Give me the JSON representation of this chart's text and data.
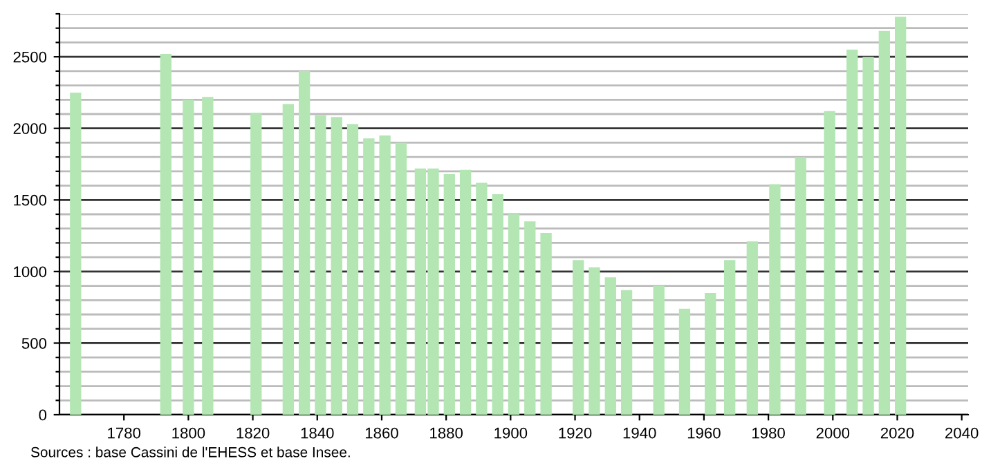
{
  "chart_data": {
    "type": "bar",
    "x": [
      1765,
      1793,
      1800,
      1806,
      1821,
      1831,
      1836,
      1841,
      1846,
      1851,
      1856,
      1861,
      1866,
      1872,
      1876,
      1881,
      1886,
      1891,
      1896,
      1901,
      1906,
      1911,
      1921,
      1926,
      1931,
      1936,
      1946,
      1954,
      1962,
      1968,
      1975,
      1982,
      1990,
      1999,
      2006,
      2011,
      2016,
      2021
    ],
    "values": [
      2250,
      2520,
      2200,
      2220,
      2110,
      2170,
      2400,
      2090,
      2080,
      2030,
      1930,
      1950,
      1900,
      1720,
      1720,
      1680,
      1710,
      1620,
      1540,
      1400,
      1350,
      1270,
      1080,
      1030,
      960,
      870,
      900,
      740,
      850,
      1080,
      1210,
      1610,
      1800,
      2120,
      2550,
      2500,
      2680,
      2780
    ],
    "color": "#b3e6b3",
    "xlim": [
      1760,
      2042
    ],
    "xticks": [
      1780,
      1800,
      1820,
      1840,
      1860,
      1880,
      1900,
      1920,
      1940,
      1960,
      1980,
      2000,
      2020,
      2040
    ],
    "ylim": [
      0,
      2800
    ],
    "yticks": [
      0,
      {
        "value": 100,
        "label": null
      },
      {
        "value": 200,
        "label": null
      },
      {
        "value": 300,
        "label": null
      },
      {
        "value": 400,
        "label": null
      },
      500,
      {
        "value": 600,
        "label": null
      },
      {
        "value": 700,
        "label": null
      },
      {
        "value": 800,
        "label": null
      },
      {
        "value": 900,
        "label": null
      },
      1000,
      {
        "value": 1100,
        "label": null
      },
      {
        "value": 1200,
        "label": null
      },
      {
        "value": 1300,
        "label": null
      },
      {
        "value": 1400,
        "label": null
      },
      1500,
      {
        "value": 1600,
        "label": null
      },
      {
        "value": 1700,
        "label": null
      },
      {
        "value": 1800,
        "label": null
      },
      {
        "value": 1900,
        "label": null
      },
      2000,
      {
        "value": 2100,
        "label": null
      },
      {
        "value": 2200,
        "label": null
      },
      {
        "value": 2300,
        "label": null
      },
      {
        "value": 2400,
        "label": null
      },
      2500,
      {
        "value": 2600,
        "label": null
      },
      {
        "value": 2700,
        "label": null
      },
      {
        "value": 2800,
        "label": null
      }
    ],
    "grid": "y",
    "annotations": [
      "Sources : base Cassini de l'EHESS et base Insee."
    ]
  }
}
